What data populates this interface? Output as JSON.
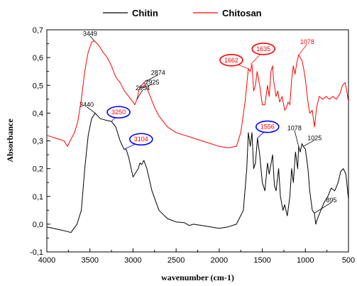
{
  "chart_data": {
    "type": "line",
    "xlabel": "wavenumber (cm-1)",
    "ylabel": "Absorbance",
    "xlim": [
      4000,
      500
    ],
    "ylim": [
      -0.1,
      0.7
    ],
    "x_reversed": true,
    "x_ticks": [
      "4000",
      "3500",
      "3000",
      "2500",
      "2000",
      "1500",
      "1000",
      "500"
    ],
    "y_ticks": [
      "-0,1",
      "0,0",
      "0,1",
      "0,2",
      "0,3",
      "0,4",
      "0,5",
      "0,6",
      "0,7"
    ],
    "legend_position": "top",
    "series": [
      {
        "name": "Chitin",
        "color": "#000000",
        "points": [
          [
            4000,
            -0.01
          ],
          [
            3850,
            -0.02
          ],
          [
            3780,
            -0.025
          ],
          [
            3720,
            -0.03
          ],
          [
            3650,
            0.0
          ],
          [
            3600,
            0.05
          ],
          [
            3560,
            0.2
          ],
          [
            3520,
            0.32
          ],
          [
            3480,
            0.38
          ],
          [
            3440,
            0.4
          ],
          [
            3380,
            0.38
          ],
          [
            3320,
            0.375
          ],
          [
            3250,
            0.37
          ],
          [
            3200,
            0.35
          ],
          [
            3150,
            0.3
          ],
          [
            3104,
            0.27
          ],
          [
            3080,
            0.27
          ],
          [
            3050,
            0.24
          ],
          [
            3000,
            0.17
          ],
          [
            2960,
            0.19
          ],
          [
            2940,
            0.2
          ],
          [
            2920,
            0.22
          ],
          [
            2900,
            0.215
          ],
          [
            2874,
            0.23
          ],
          [
            2840,
            0.2
          ],
          [
            2780,
            0.12
          ],
          [
            2700,
            0.05
          ],
          [
            2600,
            0.02
          ],
          [
            2500,
            0.008
          ],
          [
            2400,
            0.005
          ],
          [
            2350,
            -0.005
          ],
          [
            2300,
            0.0
          ],
          [
            2200,
            -0.005
          ],
          [
            2100,
            -0.01
          ],
          [
            2000,
            -0.015
          ],
          [
            1900,
            -0.01
          ],
          [
            1800,
            0.0
          ],
          [
            1720,
            0.05
          ],
          [
            1680,
            0.2
          ],
          [
            1662,
            0.33
          ],
          [
            1640,
            0.28
          ],
          [
            1620,
            0.33
          ],
          [
            1600,
            0.2
          ],
          [
            1580,
            0.22
          ],
          [
            1556,
            0.31
          ],
          [
            1530,
            0.25
          ],
          [
            1500,
            0.15
          ],
          [
            1470,
            0.12
          ],
          [
            1440,
            0.22
          ],
          [
            1420,
            0.18
          ],
          [
            1380,
            0.25
          ],
          [
            1360,
            0.14
          ],
          [
            1340,
            0.12
          ],
          [
            1310,
            0.2
          ],
          [
            1290,
            0.1
          ],
          [
            1260,
            0.05
          ],
          [
            1240,
            0.07
          ],
          [
            1210,
            0.03
          ],
          [
            1180,
            0.1
          ],
          [
            1160,
            0.2
          ],
          [
            1140,
            0.15
          ],
          [
            1115,
            0.26
          ],
          [
            1090,
            0.2
          ],
          [
            1078,
            0.28
          ],
          [
            1060,
            0.26
          ],
          [
            1040,
            0.29
          ],
          [
            1025,
            0.28
          ],
          [
            1000,
            0.27
          ],
          [
            970,
            0.2
          ],
          [
            950,
            0.12
          ],
          [
            920,
            0.05
          ],
          [
            895,
            0.04
          ],
          [
            880,
            0.0
          ],
          [
            860,
            0.02
          ],
          [
            820,
            0.05
          ],
          [
            780,
            0.08
          ],
          [
            740,
            0.1
          ],
          [
            700,
            0.13
          ],
          [
            660,
            0.12
          ],
          [
            620,
            0.15
          ],
          [
            590,
            0.19
          ],
          [
            560,
            0.2
          ],
          [
            530,
            0.18
          ],
          [
            510,
            0.12
          ],
          [
            500,
            0.09
          ]
        ]
      },
      {
        "name": "Chitosan",
        "color": "#ff0000",
        "points": [
          [
            4000,
            0.32
          ],
          [
            3900,
            0.31
          ],
          [
            3800,
            0.3
          ],
          [
            3760,
            0.28
          ],
          [
            3730,
            0.3
          ],
          [
            3680,
            0.33
          ],
          [
            3640,
            0.37
          ],
          [
            3600,
            0.45
          ],
          [
            3560,
            0.55
          ],
          [
            3520,
            0.62
          ],
          [
            3480,
            0.655
          ],
          [
            3449,
            0.66
          ],
          [
            3400,
            0.645
          ],
          [
            3350,
            0.62
          ],
          [
            3300,
            0.6
          ],
          [
            3250,
            0.57
          ],
          [
            3200,
            0.53
          ],
          [
            3150,
            0.51
          ],
          [
            3100,
            0.48
          ],
          [
            3050,
            0.46
          ],
          [
            3000,
            0.44
          ],
          [
            2980,
            0.43
          ],
          [
            2954,
            0.45
          ],
          [
            2940,
            0.47
          ],
          [
            2925,
            0.49
          ],
          [
            2900,
            0.5
          ],
          [
            2874,
            0.51
          ],
          [
            2840,
            0.49
          ],
          [
            2800,
            0.46
          ],
          [
            2750,
            0.42
          ],
          [
            2700,
            0.39
          ],
          [
            2600,
            0.35
          ],
          [
            2500,
            0.33
          ],
          [
            2400,
            0.32
          ],
          [
            2350,
            0.315
          ],
          [
            2300,
            0.31
          ],
          [
            2200,
            0.3
          ],
          [
            2100,
            0.29
          ],
          [
            2000,
            0.28
          ],
          [
            1900,
            0.275
          ],
          [
            1800,
            0.28
          ],
          [
            1750,
            0.33
          ],
          [
            1700,
            0.44
          ],
          [
            1662,
            0.56
          ],
          [
            1640,
            0.55
          ],
          [
            1620,
            0.575
          ],
          [
            1600,
            0.48
          ],
          [
            1580,
            0.5
          ],
          [
            1560,
            0.55
          ],
          [
            1530,
            0.5
          ],
          [
            1500,
            0.43
          ],
          [
            1470,
            0.43
          ],
          [
            1440,
            0.5
          ],
          [
            1420,
            0.46
          ],
          [
            1400,
            0.55
          ],
          [
            1380,
            0.57
          ],
          [
            1370,
            0.52
          ],
          [
            1340,
            0.46
          ],
          [
            1320,
            0.48
          ],
          [
            1300,
            0.44
          ],
          [
            1270,
            0.46
          ],
          [
            1240,
            0.41
          ],
          [
            1220,
            0.42
          ],
          [
            1200,
            0.44
          ],
          [
            1180,
            0.43
          ],
          [
            1160,
            0.52
          ],
          [
            1140,
            0.57
          ],
          [
            1120,
            0.54
          ],
          [
            1100,
            0.58
          ],
          [
            1078,
            0.61
          ],
          [
            1060,
            0.6
          ],
          [
            1040,
            0.59
          ],
          [
            1020,
            0.56
          ],
          [
            1000,
            0.52
          ],
          [
            970,
            0.44
          ],
          [
            950,
            0.4
          ],
          [
            920,
            0.41
          ],
          [
            895,
            0.35
          ],
          [
            870,
            0.42
          ],
          [
            840,
            0.46
          ],
          [
            800,
            0.45
          ],
          [
            760,
            0.46
          ],
          [
            720,
            0.45
          ],
          [
            680,
            0.46
          ],
          [
            640,
            0.45
          ],
          [
            600,
            0.47
          ],
          [
            570,
            0.5
          ],
          [
            540,
            0.51
          ],
          [
            520,
            0.48
          ],
          [
            500,
            0.44
          ]
        ]
      }
    ],
    "annotations": [
      {
        "text": "3449",
        "x": 3449,
        "y": 0.66,
        "color": "#000000",
        "circled": false
      },
      {
        "text": "2954",
        "x": 2954,
        "y": 0.45,
        "color": "#000000",
        "circled": false
      },
      {
        "text": "2925",
        "x": 2925,
        "y": 0.49,
        "color": "#000000",
        "circled": false
      },
      {
        "text": "2874",
        "x": 2874,
        "y": 0.51,
        "color": "#000000",
        "circled": false
      },
      {
        "text": "3440",
        "x": 3440,
        "y": 0.4,
        "color": "#000000",
        "circled": false
      },
      {
        "text": "3250",
        "x": 3250,
        "y": 0.37,
        "color": "#ff0000",
        "circled": true,
        "ring": "#0000ff"
      },
      {
        "text": "3104",
        "x": 3104,
        "y": 0.27,
        "color": "#ff0000",
        "circled": true,
        "ring": "#0000ff"
      },
      {
        "text": "1662",
        "x": 1662,
        "y": 0.56,
        "color": "#ff0000",
        "circled": true,
        "ring": "#ff0000"
      },
      {
        "text": "1635",
        "x": 1635,
        "y": 0.575,
        "color": "#ff0000",
        "circled": true,
        "ring": "#ff0000"
      },
      {
        "text": "1078",
        "x": 1078,
        "y": 0.61,
        "color": "#ff0000",
        "circled": false
      },
      {
        "text": "1556",
        "x": 1556,
        "y": 0.31,
        "color": "#ff0000",
        "circled": true,
        "ring": "#0000ff"
      },
      {
        "text": "1078",
        "x": 1078,
        "y": 0.28,
        "color": "#000000",
        "circled": false
      },
      {
        "text": "1025",
        "x": 1025,
        "y": 0.28,
        "color": "#000000",
        "circled": false
      },
      {
        "text": "895",
        "x": 895,
        "y": 0.04,
        "color": "#000000",
        "circled": false
      }
    ]
  }
}
